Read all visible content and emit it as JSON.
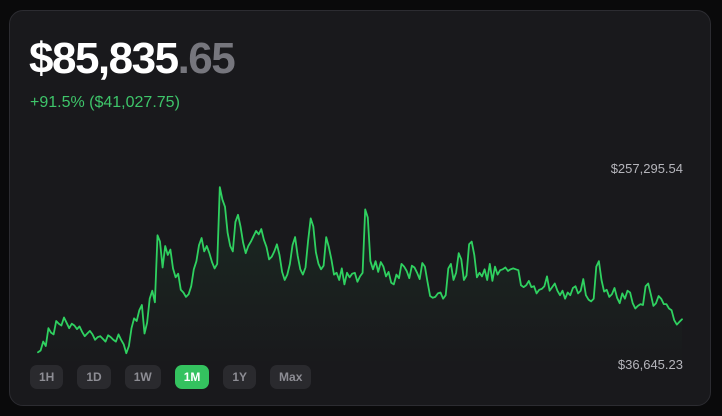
{
  "price": {
    "main": "$85,835",
    "cents": ".65"
  },
  "change": "+91.5% ($41,027.75)",
  "ranges": [
    "1H",
    "1D",
    "1W",
    "1M",
    "1Y",
    "Max"
  ],
  "active_range": "1M",
  "colors": {
    "accent": "#34c25f",
    "line": "#2fd160",
    "card": "#19191c",
    "muted": "#76767d"
  },
  "chart_data": {
    "type": "line",
    "title": "",
    "xlabel": "",
    "ylabel": "",
    "y_labels": {
      "max": "$257,295.54",
      "min": "$36,645.23"
    },
    "ylim": [
      36645.23,
      257295.54
    ],
    "grid": false,
    "legend": "none",
    "series": [
      {
        "values": [
          52000,
          54000,
          64000,
          59000,
          79000,
          74000,
          72000,
          87000,
          84000,
          82000,
          91000,
          85000,
          79000,
          84000,
          82000,
          78000,
          81000,
          75000,
          70000,
          73000,
          76000,
          72000,
          66000,
          69000,
          70000,
          67000,
          64000,
          71000,
          69000,
          66000,
          64000,
          72000,
          66000,
          61000,
          51000,
          59000,
          79000,
          90000,
          87000,
          99000,
          105000,
          73000,
          85000,
          112000,
          121000,
          108000,
          183000,
          176000,
          147000,
          171000,
          161000,
          167000,
          146000,
          136000,
          140000,
          122000,
          119000,
          114000,
          117000,
          126000,
          145000,
          154000,
          172000,
          180000,
          165000,
          171000,
          163000,
          153000,
          146000,
          151000,
          237000,
          223000,
          215000,
          186000,
          171000,
          165000,
          198000,
          206000,
          193000,
          175000,
          163000,
          171000,
          176000,
          182000,
          188000,
          184000,
          190000,
          178000,
          170000,
          156000,
          159000,
          165000,
          173000,
          161000,
          142000,
          133000,
          139000,
          151000,
          172000,
          181000,
          160000,
          145000,
          139000,
          147000,
          177000,
          202000,
          193000,
          164000,
          151000,
          145000,
          149000,
          181000,
          170000,
          156000,
          139000,
          141000,
          133000,
          146000,
          128000,
          141000,
          136000,
          140000,
          141000,
          131000,
          137000,
          141000,
          212000,
          203000,
          154000,
          145000,
          154000,
          142000,
          153000,
          148000,
          137000,
          142000,
          130000,
          128000,
          139000,
          135000,
          151000,
          148000,
          143000,
          135000,
          149000,
          147000,
          141000,
          134000,
          152000,
          148000,
          131000,
          115000,
          113000,
          114000,
          118000,
          119000,
          112000,
          116000,
          146000,
          151000,
          133000,
          141000,
          163000,
          156000,
          133000,
          138000,
          173000,
          176000,
          161000,
          136000,
          141000,
          137000,
          145000,
          133000,
          151000,
          132000,
          148000,
          139000,
          144000,
          145000,
          147000,
          143000,
          145000,
          146000,
          145000,
          144000,
          127000,
          125000,
          127000,
          132000,
          125000,
          126000,
          118000,
          122000,
          123000,
          126000,
          137000,
          121000,
          125000,
          129000,
          121000,
          116000,
          121000,
          112000,
          119000,
          116000,
          124000,
          126000,
          118000,
          121000,
          134000,
          116000,
          111000,
          109000,
          112000,
          148000,
          154000,
          133000,
          120000,
          122000,
          114000,
          117000,
          124000,
          113000,
          107000,
          118000,
          112000,
          121000,
          119000,
          107000,
          101000,
          104000,
          106000,
          105000,
          126000,
          129000,
          117000,
          104000,
          107000,
          115000,
          112000,
          106000,
          106000,
          101000,
          99000,
          88000,
          83000,
          86000,
          89000
        ]
      }
    ]
  }
}
